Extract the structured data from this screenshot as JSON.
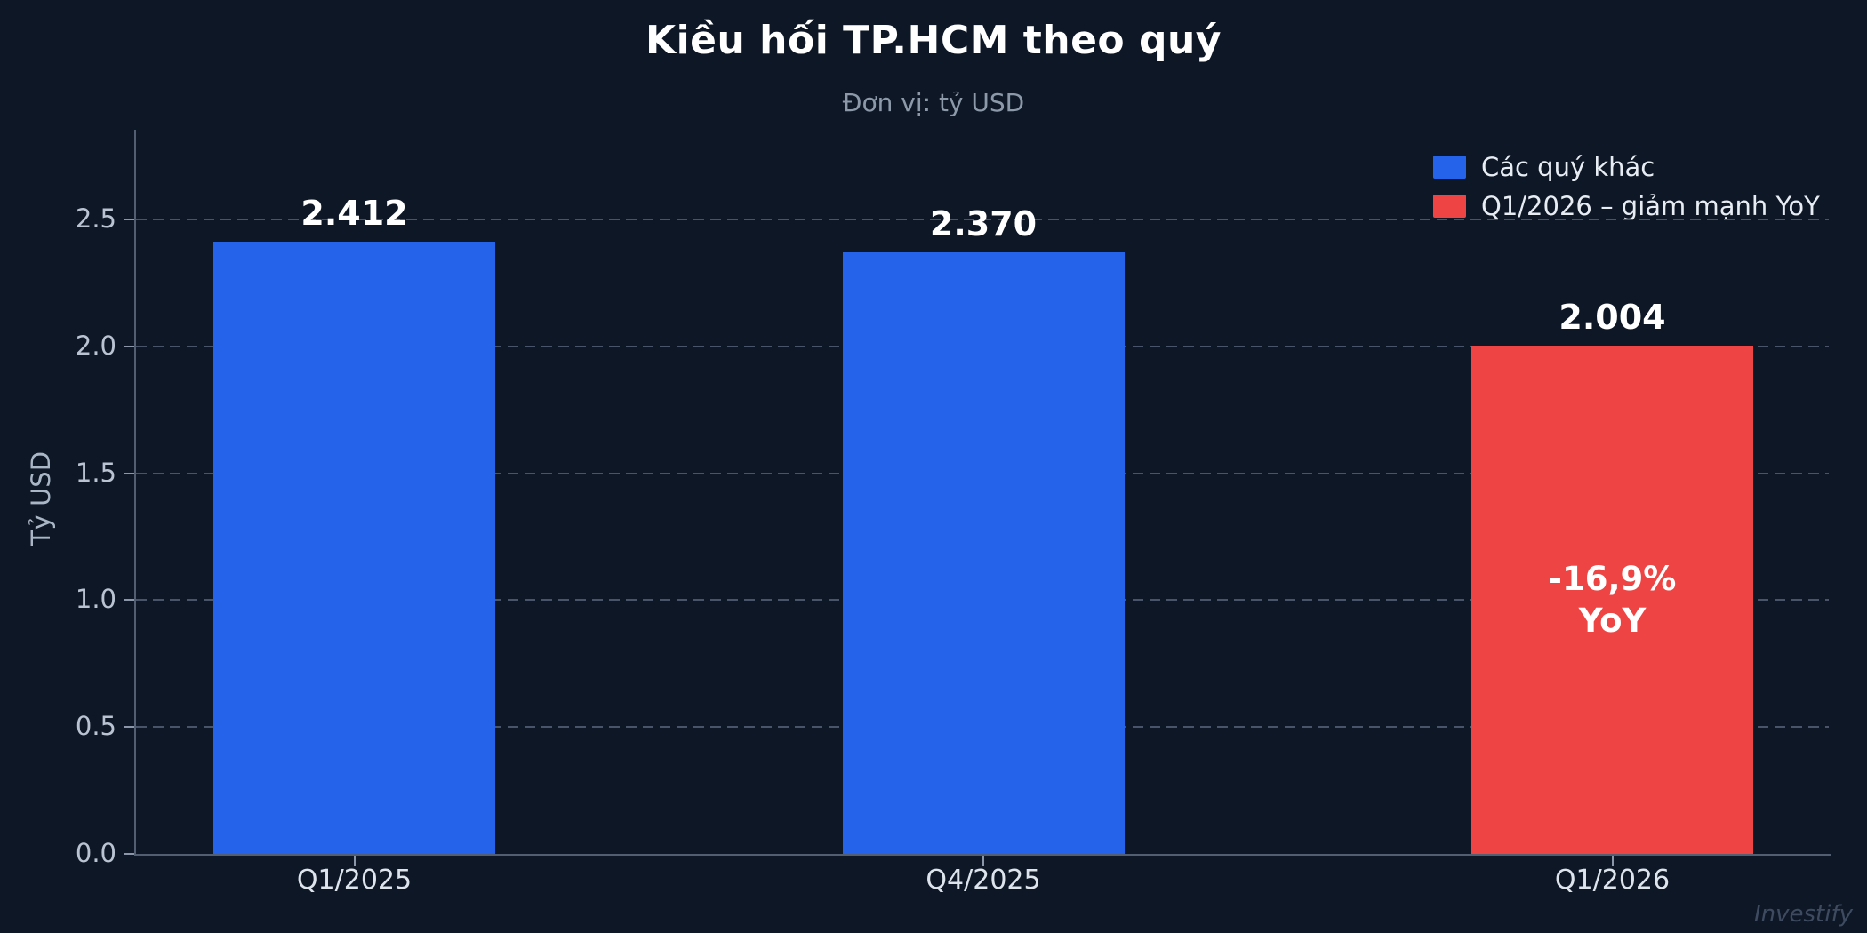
{
  "title": "Kiều hối TP.HCM theo quý",
  "subtitle": "Đơn vị: tỷ USD",
  "watermark": "Investify",
  "colors": {
    "background": "#0d1726",
    "blue_bar": "#2563eb",
    "red_bar": "#ef4444",
    "grid": "#49536a",
    "axis": "#525f72",
    "tick_label": "#b9c3d2",
    "title_text": "#ffffff",
    "subtitle_text": "#8d99a9"
  },
  "chart_data": {
    "type": "bar",
    "title": "Kiều hối TP.HCM theo quý",
    "subtitle": "Đơn vị: tỷ USD",
    "xlabel": "",
    "ylabel": "Tỷ USD",
    "categories": [
      "Q1/2025",
      "Q4/2025",
      "Q1/2026"
    ],
    "values": [
      2.412,
      2.37,
      2.004
    ],
    "value_labels": [
      "2.412",
      "2.370",
      "2.004"
    ],
    "bar_colors": [
      "#2563eb",
      "#2563eb",
      "#ef4444"
    ],
    "ylim": [
      0,
      2.88
    ],
    "yticks": [
      0.0,
      0.5,
      1.0,
      1.5,
      2.0,
      2.5
    ],
    "ytick_labels": [
      "0.0",
      "0.5",
      "1.0",
      "1.5",
      "2.0",
      "2.5"
    ],
    "grid": "horizontal dashed, behind bars",
    "legend_position": "top-right",
    "legend": [
      {
        "label": "Các quý khác",
        "color": "#2563eb"
      },
      {
        "label": "Q1/2026 – giảm mạnh YoY",
        "color": "#ef4444"
      }
    ],
    "annotation": {
      "bar": "Q1/2026",
      "lines": [
        "-16,9%",
        "YoY"
      ]
    }
  }
}
